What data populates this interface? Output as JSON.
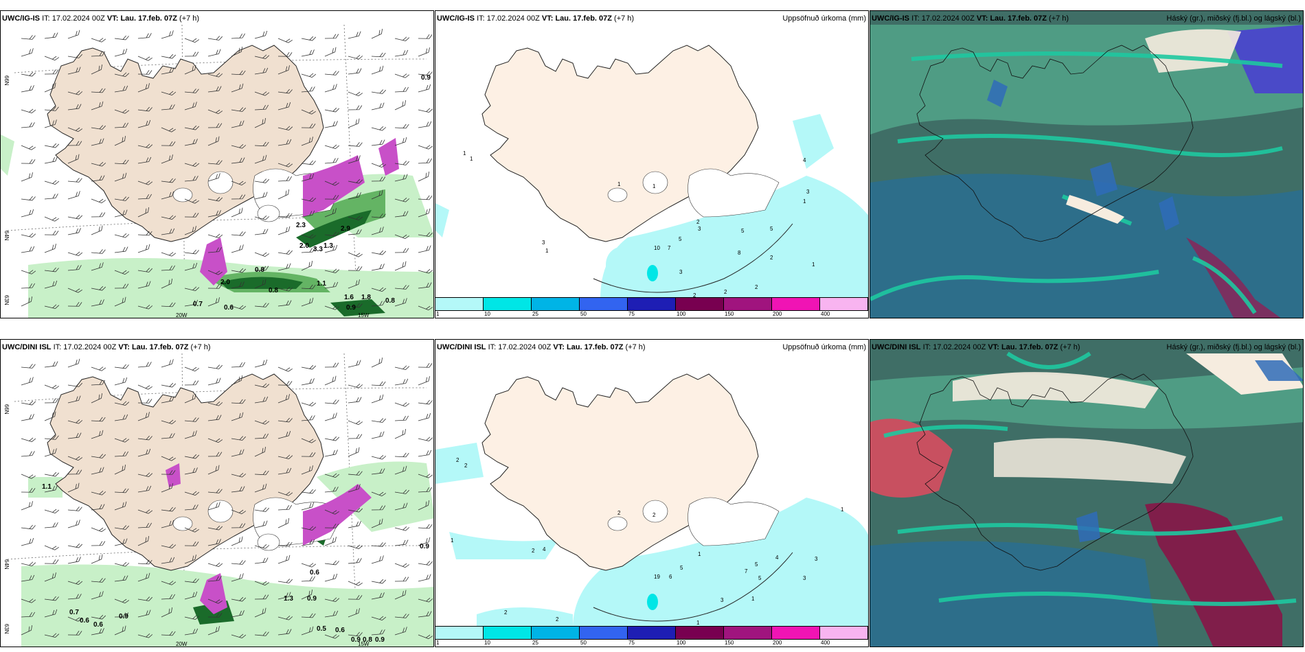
{
  "panels": {
    "top_left": {
      "label_model": "UWC/IG-IS",
      "it_label": "IT:",
      "it": "17.02.2024 00Z",
      "vt_label": "VT:",
      "vt": "Lau. 17.feb. 07Z",
      "lead": "(+7 h)",
      "right": ""
    },
    "top_mid": {
      "label_model": "UWC/IG-IS",
      "it_label": "IT:",
      "it": "17.02.2024 00Z",
      "vt_label": "VT:",
      "vt": "Lau. 17.feb. 07Z",
      "lead": "(+7 h)",
      "right": "Uppsöfnuð úrkoma (mm)"
    },
    "top_right": {
      "label_model": "UWC/IG-IS",
      "it_label": "IT:",
      "it": "17.02.2024 00Z",
      "vt_label": "VT:",
      "vt": "Lau. 17.feb. 07Z",
      "lead": "(+7 h)",
      "right": "Háský (gr.), miðský (fj.bl.) og lágský (bl.)"
    },
    "bot_left": {
      "label_model": "UWC/DINI ISL",
      "it_label": "IT:",
      "it": "17.02.2024 00Z",
      "vt_label": "VT:",
      "vt": "Lau. 17.feb. 07Z",
      "lead": "(+7 h)",
      "right": ""
    },
    "bot_mid": {
      "label_model": "UWC/DINI ISL",
      "it_label": "IT:",
      "it": "17.02.2024 00Z",
      "vt_label": "VT:",
      "vt": "Lau. 17.feb. 07Z",
      "lead": "(+7 h)",
      "right": "Uppsöfnuð úrkoma (mm)"
    },
    "bot_right": {
      "label_model": "UWC/DINI ISL",
      "it_label": "IT:",
      "it": "17.02.2024 00Z",
      "vt_label": "VT:",
      "vt": "Lau. 17.feb. 07Z",
      "lead": "(+7 h)",
      "right": "Háský (gr.), miðský (fj.bl.) og lágský (bl.)"
    }
  },
  "grid_labels": {
    "lat66": "66N",
    "lat64": "64N",
    "lat63": "63N",
    "lon20": "20W",
    "lon15": "15W"
  },
  "colorbar": {
    "ticks": [
      "1",
      "10",
      "25",
      "50",
      "75",
      "100",
      "150",
      "200",
      "400"
    ],
    "colors": [
      "#b4f8f8",
      "#00e6e6",
      "#00b4e6",
      "#3264f0",
      "#1e1eb4",
      "#780050",
      "#a0147e",
      "#f014b4",
      "#f8b4f0"
    ]
  },
  "precip_labels_top_left": [
    "0.9",
    "0.8",
    "2.0",
    "0.8",
    "2.0",
    "1.1",
    "1.3",
    "2.3",
    "2.9",
    "3.3",
    "0.7",
    "0.6",
    "1.6",
    "1.8",
    "0.9",
    "0.8"
  ],
  "precip_labels_bot_left": [
    "1.1",
    "0.7",
    "0.6",
    "0.6",
    "0.9",
    "0.9",
    "0.6",
    "1.3",
    "0.9",
    "0.5",
    "0.6",
    "0.9",
    "0.8",
    "0.9"
  ],
  "mid_labels_top": [
    "1",
    "1",
    "1",
    "1",
    "1",
    "3",
    "10",
    "7",
    "5",
    "2",
    "3",
    "5",
    "3",
    "3",
    "4",
    "1",
    "8",
    "2",
    "1",
    "2",
    "2",
    "2",
    "5"
  ],
  "mid_labels_bot": [
    "2",
    "2",
    "1",
    "2",
    "4",
    "2",
    "2",
    "19",
    "6",
    "5",
    "1",
    "5",
    "4",
    "7",
    "5",
    "3",
    "3",
    "3",
    "1",
    "2",
    "2",
    "1",
    "1"
  ],
  "colors": {
    "land": "#f0e0d0",
    "land_light": "#fdf0e4",
    "precip_light": "#c8f0c8",
    "precip_dark": "#1a6b2a",
    "magenta": "#c850c8",
    "cloud_green": "#4f9c84",
    "cloud_blue": "#2d6e8a",
    "cloud_dark": "#3f6e66",
    "ribbon": "#1ec8a0"
  }
}
